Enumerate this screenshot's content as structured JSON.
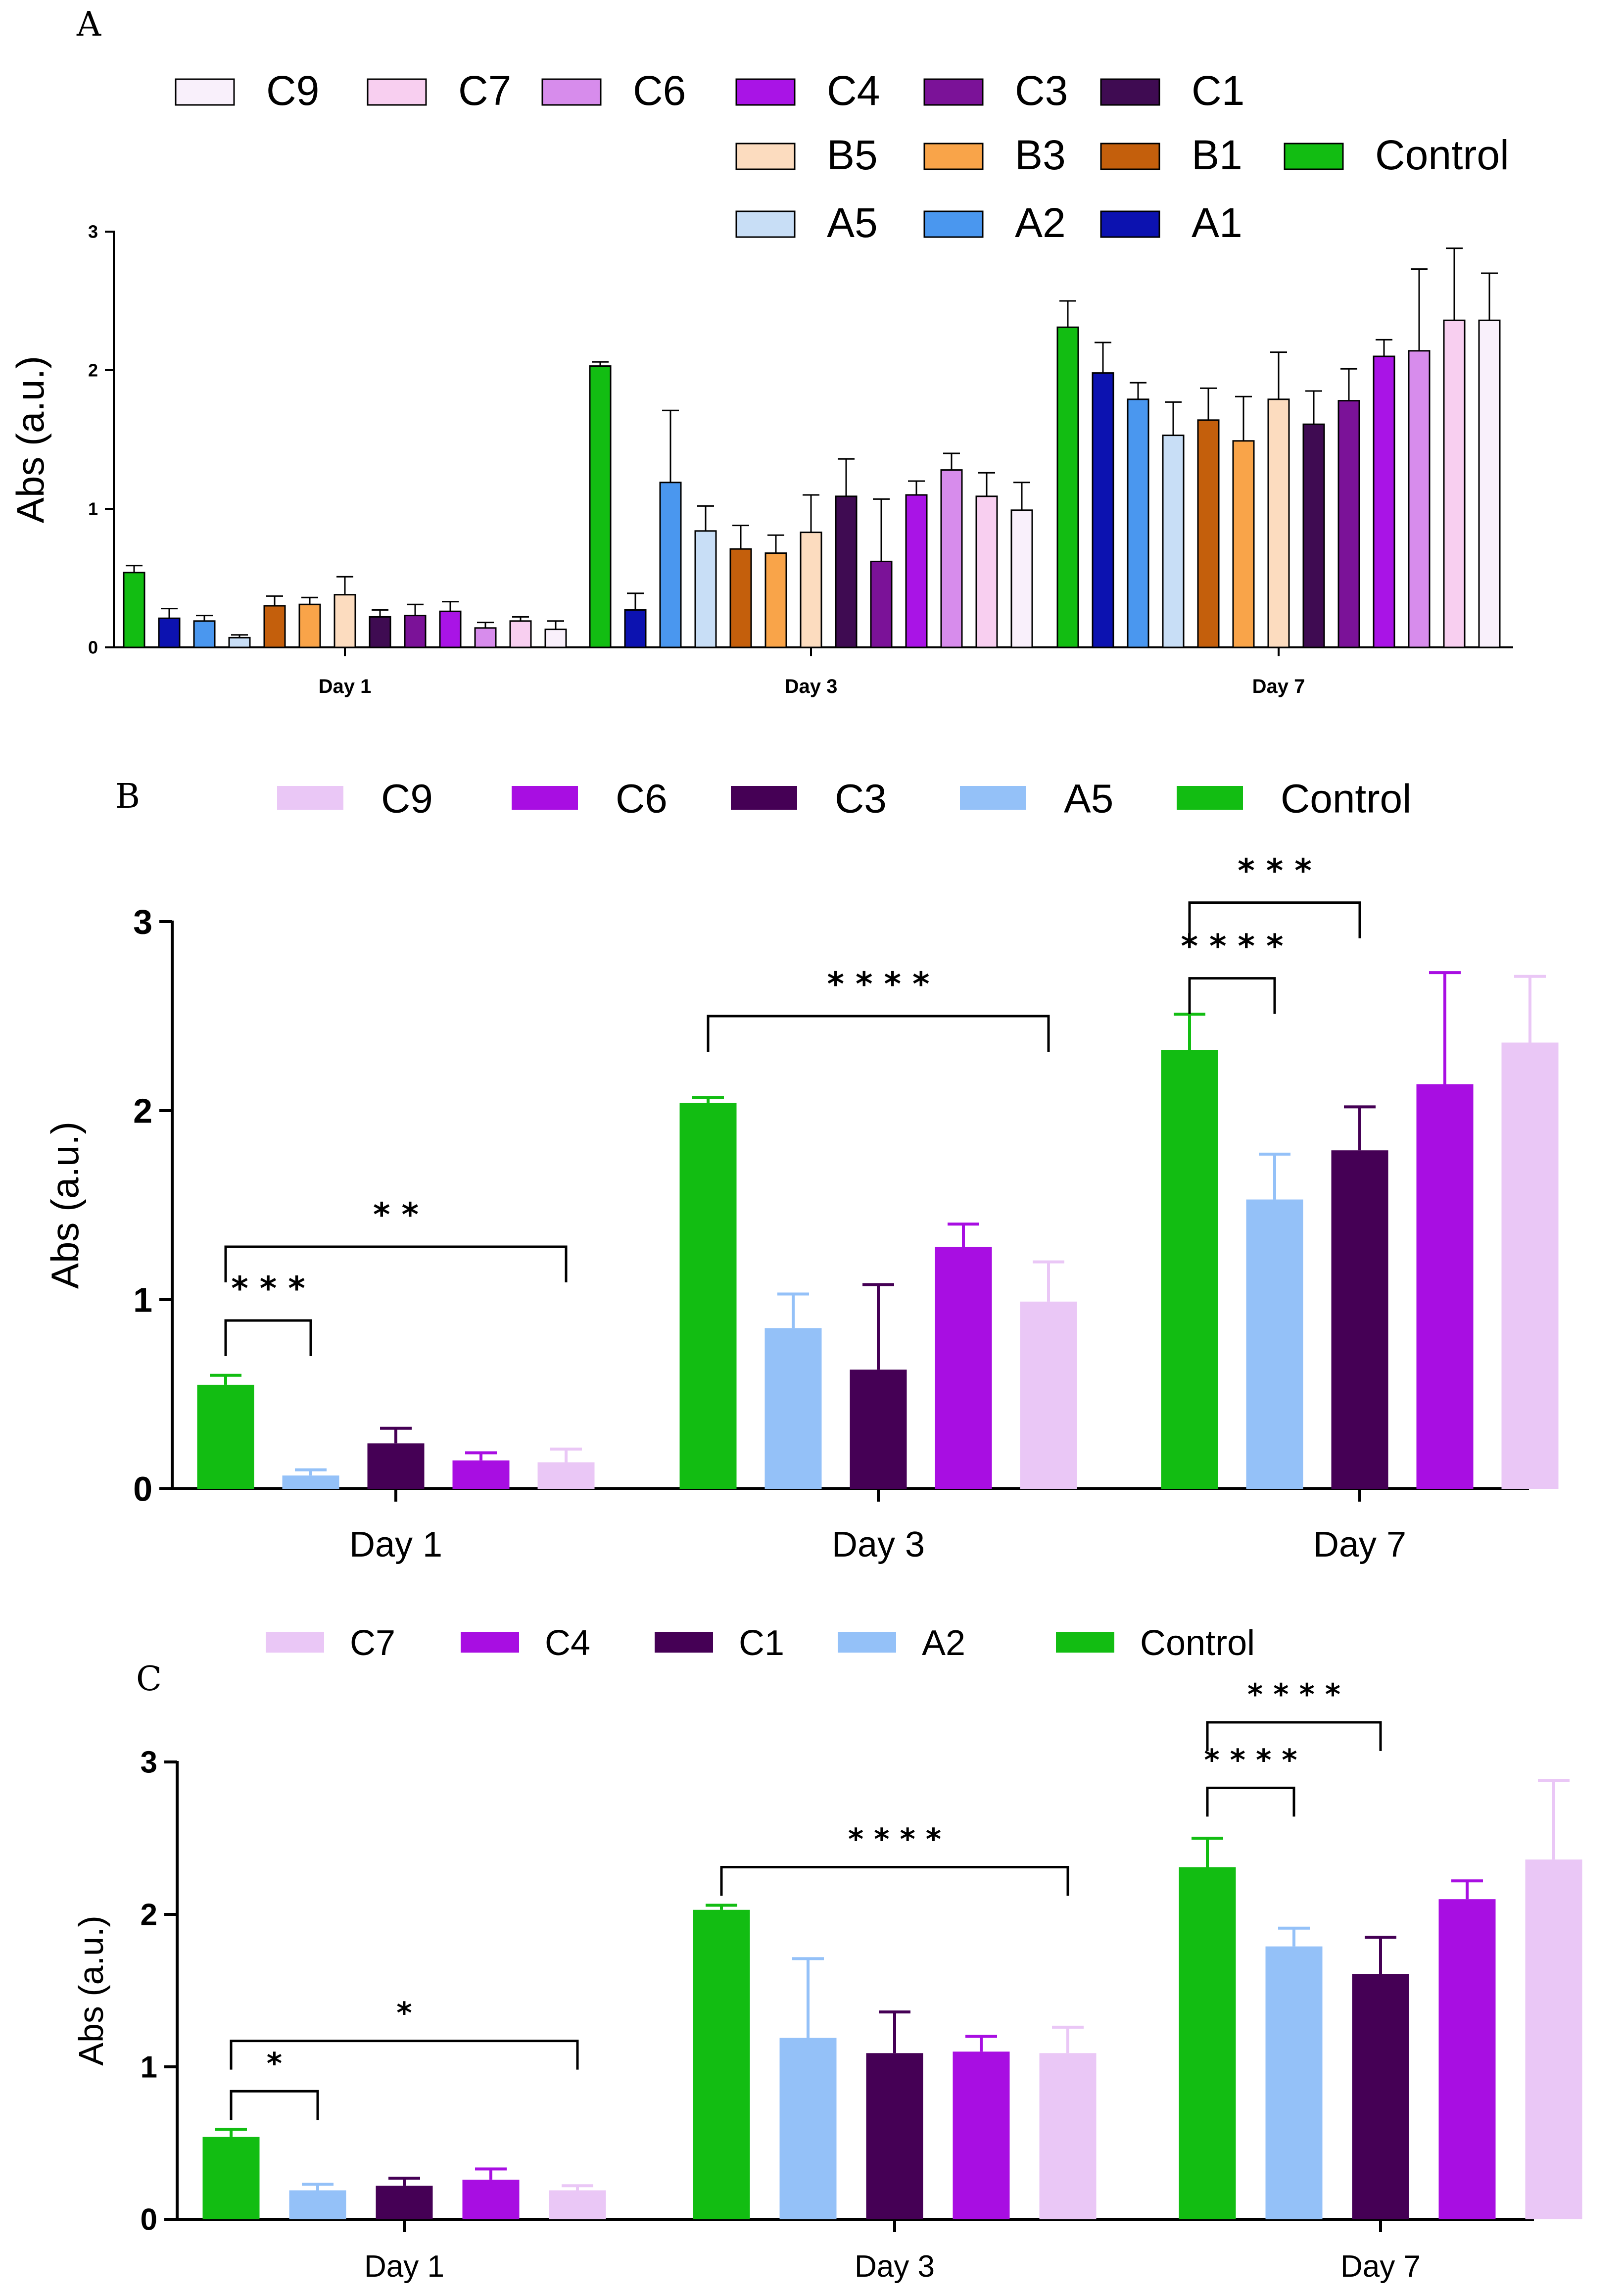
{
  "colors": {
    "Control": "#12bd12",
    "A1": "#0c12b0",
    "A2": "#4a97ef",
    "A5": "#c8def6",
    "B1": "#c45f0c",
    "B3": "#f9a449",
    "B5": "#fcdcbf",
    "C1": "#3f0b52",
    "C3": "#7b1298",
    "C4": "#a914e6",
    "C6": "#d78cec",
    "C7": "#f8cff0",
    "C9": "#f9f0fb",
    "A2_light": "#94c1f8",
    "A5_light": "#94c1f8",
    "C9_light": "#eac7f6",
    "C7_light": "#eac7f6",
    "C6_bright": "#a80ee2",
    "C4_bright": "#a80ee2",
    "C3_dark": "#450055",
    "C1_dark": "#450055"
  },
  "chart_data": [
    {
      "panel": "A",
      "type": "bar",
      "ylabel": "Abs (a.u.)",
      "ylim": [
        0,
        3
      ],
      "yticks": [
        "0",
        "1",
        "2",
        "3"
      ],
      "categories": [
        "Day 1",
        "Day 3",
        "Day 7"
      ],
      "legend_rows": [
        [
          "C9",
          "C7",
          "C6",
          "C4",
          "C3",
          "C1"
        ],
        [
          "B5",
          "B3",
          "B1",
          "Control"
        ],
        [
          "A5",
          "A2",
          "A1"
        ]
      ],
      "series": [
        {
          "name": "Control",
          "values": [
            0.54,
            2.03,
            2.31
          ],
          "errors": [
            0.05,
            0.03,
            0.19
          ]
        },
        {
          "name": "A1",
          "values": [
            0.21,
            0.27,
            1.98
          ],
          "errors": [
            0.07,
            0.12,
            0.22
          ]
        },
        {
          "name": "A2",
          "values": [
            0.19,
            1.19,
            1.79
          ],
          "errors": [
            0.04,
            0.52,
            0.12
          ]
        },
        {
          "name": "A5",
          "values": [
            0.07,
            0.84,
            1.53
          ],
          "errors": [
            0.02,
            0.18,
            0.24
          ]
        },
        {
          "name": "B1",
          "values": [
            0.3,
            0.71,
            1.64
          ],
          "errors": [
            0.07,
            0.17,
            0.23
          ]
        },
        {
          "name": "B3",
          "values": [
            0.31,
            0.68,
            1.49
          ],
          "errors": [
            0.05,
            0.13,
            0.32
          ]
        },
        {
          "name": "B5",
          "values": [
            0.38,
            0.83,
            1.79
          ],
          "errors": [
            0.13,
            0.27,
            0.34
          ]
        },
        {
          "name": "C1",
          "values": [
            0.22,
            1.09,
            1.61
          ],
          "errors": [
            0.05,
            0.27,
            0.24
          ]
        },
        {
          "name": "C3",
          "values": [
            0.23,
            0.62,
            1.78
          ],
          "errors": [
            0.08,
            0.45,
            0.23
          ]
        },
        {
          "name": "C4",
          "values": [
            0.26,
            1.1,
            2.1
          ],
          "errors": [
            0.07,
            0.1,
            0.12
          ]
        },
        {
          "name": "C6",
          "values": [
            0.14,
            1.28,
            2.14
          ],
          "errors": [
            0.04,
            0.12,
            0.59
          ]
        },
        {
          "name": "C7",
          "values": [
            0.19,
            1.09,
            2.36
          ],
          "errors": [
            0.03,
            0.17,
            0.52
          ]
        },
        {
          "name": "C9",
          "values": [
            0.13,
            0.99,
            2.36
          ],
          "errors": [
            0.06,
            0.2,
            0.34
          ]
        }
      ]
    },
    {
      "panel": "B",
      "type": "bar",
      "ylabel": "Abs (a.u.)",
      "ylim": [
        0,
        3
      ],
      "yticks": [
        "0",
        "1",
        "2",
        "3"
      ],
      "categories": [
        "Day 1",
        "Day 3",
        "Day 7"
      ],
      "legend": [
        "C9",
        "C6",
        "C3",
        "A5",
        "Control"
      ],
      "series": [
        {
          "name": "Control",
          "color_key": "Control",
          "values": [
            0.55,
            2.04,
            2.32
          ],
          "errors": [
            0.05,
            0.03,
            0.19
          ]
        },
        {
          "name": "A5",
          "color_key": "A5_light",
          "values": [
            0.07,
            0.85,
            1.53
          ],
          "errors": [
            0.03,
            0.18,
            0.24
          ]
        },
        {
          "name": "C3",
          "color_key": "C3_dark",
          "values": [
            0.24,
            0.63,
            1.79
          ],
          "errors": [
            0.08,
            0.45,
            0.23
          ]
        },
        {
          "name": "C6",
          "color_key": "C6_bright",
          "values": [
            0.15,
            1.28,
            2.14
          ],
          "errors": [
            0.04,
            0.12,
            0.59
          ]
        },
        {
          "name": "C9",
          "color_key": "C9_light",
          "values": [
            0.14,
            0.99,
            2.36
          ],
          "errors": [
            0.07,
            0.21,
            0.35
          ]
        }
      ],
      "significance": [
        {
          "day": 0,
          "from": 0,
          "to": 1,
          "label": "* * *",
          "level": 0.89
        },
        {
          "day": 0,
          "from": 0,
          "to": 4,
          "label": "* *",
          "level": 1.28
        },
        {
          "day": 1,
          "from": 0,
          "to": 4,
          "label": "* * * *",
          "level": 2.5
        },
        {
          "day": 2,
          "from": 0,
          "to": 1,
          "label": "* * * *",
          "level": 2.7
        },
        {
          "day": 2,
          "from": 0,
          "to": 2,
          "label": "* * *",
          "level": 3.1
        }
      ]
    },
    {
      "panel": "C",
      "type": "bar",
      "ylabel": "Abs (a.u.)",
      "ylim": [
        0,
        3
      ],
      "yticks": [
        "0",
        "1",
        "2",
        "3"
      ],
      "categories": [
        "Day 1",
        "Day 3",
        "Day 7"
      ],
      "legend": [
        "C7",
        "C4",
        "C1",
        "A2",
        "Control"
      ],
      "series": [
        {
          "name": "Control",
          "color_key": "Control",
          "values": [
            0.54,
            2.03,
            2.31
          ],
          "errors": [
            0.05,
            0.03,
            0.19
          ]
        },
        {
          "name": "A2",
          "color_key": "A2_light",
          "values": [
            0.19,
            1.19,
            1.79
          ],
          "errors": [
            0.04,
            0.52,
            0.12
          ]
        },
        {
          "name": "C1",
          "color_key": "C1_dark",
          "values": [
            0.22,
            1.09,
            1.61
          ],
          "errors": [
            0.05,
            0.27,
            0.24
          ]
        },
        {
          "name": "C4",
          "color_key": "C4_bright",
          "values": [
            0.26,
            1.1,
            2.1
          ],
          "errors": [
            0.07,
            0.1,
            0.12
          ]
        },
        {
          "name": "C7",
          "color_key": "C7_light",
          "values": [
            0.19,
            1.09,
            2.36
          ],
          "errors": [
            0.03,
            0.17,
            0.52
          ]
        }
      ],
      "significance": [
        {
          "day": 0,
          "from": 0,
          "to": 1,
          "label": "*",
          "level": 0.84
        },
        {
          "day": 0,
          "from": 0,
          "to": 4,
          "label": "*",
          "level": 1.17
        },
        {
          "day": 1,
          "from": 0,
          "to": 4,
          "label": "* * * *",
          "level": 2.31
        },
        {
          "day": 2,
          "from": 0,
          "to": 1,
          "label": "* * * *",
          "level": 2.83
        },
        {
          "day": 2,
          "from": 0,
          "to": 2,
          "label": "* * * *",
          "level": 3.26
        }
      ]
    }
  ]
}
